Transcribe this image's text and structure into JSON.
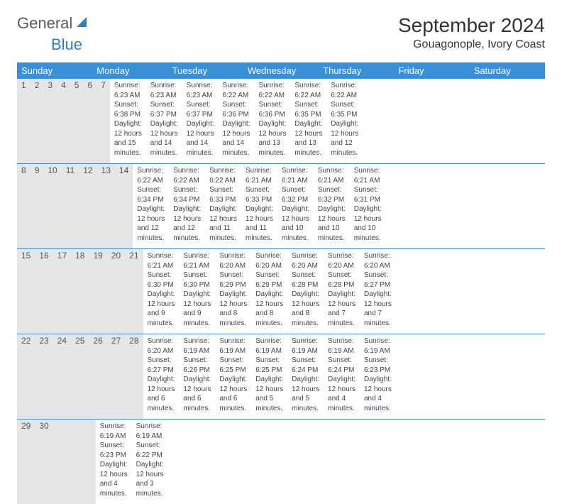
{
  "logo": {
    "part1": "General",
    "part2": "Blue"
  },
  "title": "September 2024",
  "location": "Gouagonople, Ivory Coast",
  "day_headers": [
    "Sunday",
    "Monday",
    "Tuesday",
    "Wednesday",
    "Thursday",
    "Friday",
    "Saturday"
  ],
  "header_bg": "#3b8fd4",
  "header_fg": "#ffffff",
  "strip_bg": "#e6e6e6",
  "body_bg": "#ffffff",
  "text_color": "#444444",
  "title_fontsize": 28,
  "location_fontsize": 16,
  "header_fontsize": 13,
  "daynum_fontsize": 12,
  "cell_fontsize": 10,
  "weeks": [
    [
      {
        "n": "1",
        "sr": "Sunrise: 6:23 AM",
        "ss": "Sunset: 6:38 PM",
        "d1": "Daylight: 12 hours",
        "d2": "and 15 minutes."
      },
      {
        "n": "2",
        "sr": "Sunrise: 6:23 AM",
        "ss": "Sunset: 6:37 PM",
        "d1": "Daylight: 12 hours",
        "d2": "and 14 minutes."
      },
      {
        "n": "3",
        "sr": "Sunrise: 6:23 AM",
        "ss": "Sunset: 6:37 PM",
        "d1": "Daylight: 12 hours",
        "d2": "and 14 minutes."
      },
      {
        "n": "4",
        "sr": "Sunrise: 6:22 AM",
        "ss": "Sunset: 6:36 PM",
        "d1": "Daylight: 12 hours",
        "d2": "and 14 minutes."
      },
      {
        "n": "5",
        "sr": "Sunrise: 6:22 AM",
        "ss": "Sunset: 6:36 PM",
        "d1": "Daylight: 12 hours",
        "d2": "and 13 minutes."
      },
      {
        "n": "6",
        "sr": "Sunrise: 6:22 AM",
        "ss": "Sunset: 6:35 PM",
        "d1": "Daylight: 12 hours",
        "d2": "and 13 minutes."
      },
      {
        "n": "7",
        "sr": "Sunrise: 6:22 AM",
        "ss": "Sunset: 6:35 PM",
        "d1": "Daylight: 12 hours",
        "d2": "and 12 minutes."
      }
    ],
    [
      {
        "n": "8",
        "sr": "Sunrise: 6:22 AM",
        "ss": "Sunset: 6:34 PM",
        "d1": "Daylight: 12 hours",
        "d2": "and 12 minutes."
      },
      {
        "n": "9",
        "sr": "Sunrise: 6:22 AM",
        "ss": "Sunset: 6:34 PM",
        "d1": "Daylight: 12 hours",
        "d2": "and 12 minutes."
      },
      {
        "n": "10",
        "sr": "Sunrise: 6:22 AM",
        "ss": "Sunset: 6:33 PM",
        "d1": "Daylight: 12 hours",
        "d2": "and 11 minutes."
      },
      {
        "n": "11",
        "sr": "Sunrise: 6:21 AM",
        "ss": "Sunset: 6:33 PM",
        "d1": "Daylight: 12 hours",
        "d2": "and 11 minutes."
      },
      {
        "n": "12",
        "sr": "Sunrise: 6:21 AM",
        "ss": "Sunset: 6:32 PM",
        "d1": "Daylight: 12 hours",
        "d2": "and 10 minutes."
      },
      {
        "n": "13",
        "sr": "Sunrise: 6:21 AM",
        "ss": "Sunset: 6:32 PM",
        "d1": "Daylight: 12 hours",
        "d2": "and 10 minutes."
      },
      {
        "n": "14",
        "sr": "Sunrise: 6:21 AM",
        "ss": "Sunset: 6:31 PM",
        "d1": "Daylight: 12 hours",
        "d2": "and 10 minutes."
      }
    ],
    [
      {
        "n": "15",
        "sr": "Sunrise: 6:21 AM",
        "ss": "Sunset: 6:30 PM",
        "d1": "Daylight: 12 hours",
        "d2": "and 9 minutes."
      },
      {
        "n": "16",
        "sr": "Sunrise: 6:21 AM",
        "ss": "Sunset: 6:30 PM",
        "d1": "Daylight: 12 hours",
        "d2": "and 9 minutes."
      },
      {
        "n": "17",
        "sr": "Sunrise: 6:20 AM",
        "ss": "Sunset: 6:29 PM",
        "d1": "Daylight: 12 hours",
        "d2": "and 8 minutes."
      },
      {
        "n": "18",
        "sr": "Sunrise: 6:20 AM",
        "ss": "Sunset: 6:29 PM",
        "d1": "Daylight: 12 hours",
        "d2": "and 8 minutes."
      },
      {
        "n": "19",
        "sr": "Sunrise: 6:20 AM",
        "ss": "Sunset: 6:28 PM",
        "d1": "Daylight: 12 hours",
        "d2": "and 8 minutes."
      },
      {
        "n": "20",
        "sr": "Sunrise: 6:20 AM",
        "ss": "Sunset: 6:28 PM",
        "d1": "Daylight: 12 hours",
        "d2": "and 7 minutes."
      },
      {
        "n": "21",
        "sr": "Sunrise: 6:20 AM",
        "ss": "Sunset: 6:27 PM",
        "d1": "Daylight: 12 hours",
        "d2": "and 7 minutes."
      }
    ],
    [
      {
        "n": "22",
        "sr": "Sunrise: 6:20 AM",
        "ss": "Sunset: 6:27 PM",
        "d1": "Daylight: 12 hours",
        "d2": "and 6 minutes."
      },
      {
        "n": "23",
        "sr": "Sunrise: 6:19 AM",
        "ss": "Sunset: 6:26 PM",
        "d1": "Daylight: 12 hours",
        "d2": "and 6 minutes."
      },
      {
        "n": "24",
        "sr": "Sunrise: 6:19 AM",
        "ss": "Sunset: 6:25 PM",
        "d1": "Daylight: 12 hours",
        "d2": "and 6 minutes."
      },
      {
        "n": "25",
        "sr": "Sunrise: 6:19 AM",
        "ss": "Sunset: 6:25 PM",
        "d1": "Daylight: 12 hours",
        "d2": "and 5 minutes."
      },
      {
        "n": "26",
        "sr": "Sunrise: 6:19 AM",
        "ss": "Sunset: 6:24 PM",
        "d1": "Daylight: 12 hours",
        "d2": "and 5 minutes."
      },
      {
        "n": "27",
        "sr": "Sunrise: 6:19 AM",
        "ss": "Sunset: 6:24 PM",
        "d1": "Daylight: 12 hours",
        "d2": "and 4 minutes."
      },
      {
        "n": "28",
        "sr": "Sunrise: 6:19 AM",
        "ss": "Sunset: 6:23 PM",
        "d1": "Daylight: 12 hours",
        "d2": "and 4 minutes."
      }
    ],
    [
      {
        "n": "29",
        "sr": "Sunrise: 6:19 AM",
        "ss": "Sunset: 6:23 PM",
        "d1": "Daylight: 12 hours",
        "d2": "and 4 minutes."
      },
      {
        "n": "30",
        "sr": "Sunrise: 6:19 AM",
        "ss": "Sunset: 6:22 PM",
        "d1": "Daylight: 12 hours",
        "d2": "and 3 minutes."
      },
      {
        "n": "",
        "sr": "",
        "ss": "",
        "d1": "",
        "d2": ""
      },
      {
        "n": "",
        "sr": "",
        "ss": "",
        "d1": "",
        "d2": ""
      },
      {
        "n": "",
        "sr": "",
        "ss": "",
        "d1": "",
        "d2": ""
      },
      {
        "n": "",
        "sr": "",
        "ss": "",
        "d1": "",
        "d2": ""
      },
      {
        "n": "",
        "sr": "",
        "ss": "",
        "d1": "",
        "d2": ""
      }
    ]
  ]
}
